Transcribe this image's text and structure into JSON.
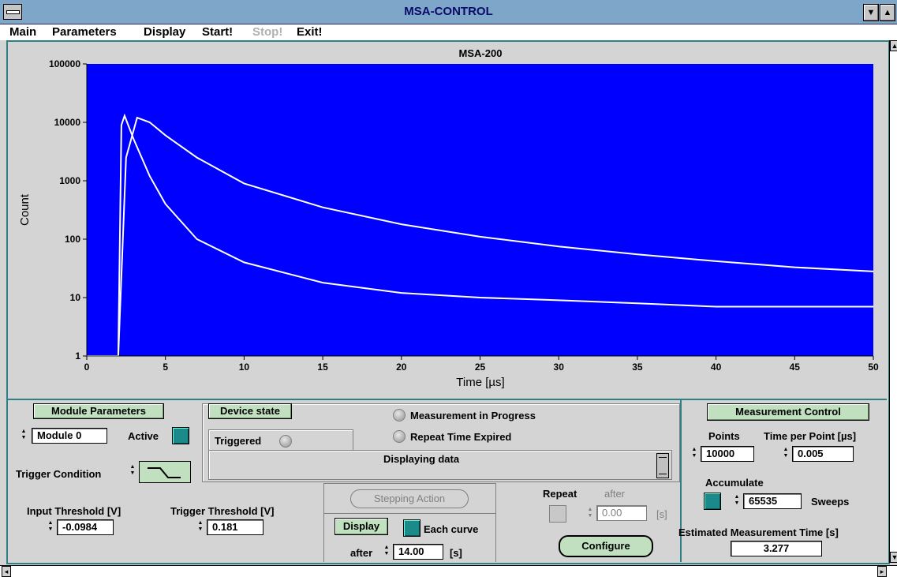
{
  "window": {
    "title": "MSA-CONTROL"
  },
  "menu": {
    "items": [
      "Main",
      "Parameters",
      "Display",
      "Start!",
      "Stop!",
      "Exit!"
    ]
  },
  "chart_data": {
    "type": "line",
    "title": "MSA-200",
    "xlabel": "Time [µs]",
    "ylabel": "Count",
    "xlim": [
      0,
      50
    ],
    "ylim": [
      1,
      100000
    ],
    "yscale": "log",
    "x_ticks": [
      "0",
      "5",
      "10",
      "15",
      "20",
      "25",
      "30",
      "35",
      "40",
      "45",
      "50"
    ],
    "y_ticks": [
      "1",
      "10",
      "100",
      "1000",
      "10000",
      "100000"
    ],
    "background_color": "#0000ff",
    "series": [
      {
        "color": "#ffffff",
        "x": [
          0,
          2.0,
          2.2,
          2.4,
          3.0,
          4,
          5,
          7,
          10,
          15,
          20,
          25,
          30,
          35,
          40,
          45,
          50
        ],
        "values": [
          1,
          1,
          9000,
          13000,
          5000,
          1200,
          400,
          100,
          40,
          18,
          12,
          10,
          9,
          8,
          7,
          7,
          7
        ]
      },
      {
        "color": "#ffffff",
        "x": [
          0,
          2.0,
          2.5,
          3.2,
          4,
          5,
          7,
          10,
          15,
          20,
          25,
          30,
          35,
          40,
          45,
          50
        ],
        "values": [
          1,
          1,
          2500,
          12000,
          10000,
          6000,
          2500,
          900,
          350,
          180,
          110,
          75,
          55,
          42,
          33,
          28
        ]
      }
    ]
  },
  "module": {
    "header": "Module Parameters",
    "module_value": "Module 0",
    "active_label": "Active",
    "trigger_condition_label": "Trigger Condition",
    "input_threshold_label": "Input Threshold [V]",
    "input_threshold_value": "-0.0984",
    "trigger_threshold_label": "Trigger Threshold [V]",
    "trigger_threshold_value": "0.181"
  },
  "device": {
    "header": "Device state",
    "triggered_label": "Triggered",
    "measurement_label": "Measurement  in Progress",
    "repeat_expired_label": "Repeat Time Expired",
    "status_text": "Displaying data"
  },
  "stepping": {
    "button_label": "Stepping Action"
  },
  "display": {
    "button_label": "Display",
    "each_curve_label": "Each curve",
    "after_label": "after",
    "after_value": "14.00",
    "after_unit": "[s]"
  },
  "repeat": {
    "label": "Repeat",
    "after_label": "after",
    "value": "0.00",
    "unit": "[s]",
    "configure_label": "Configure"
  },
  "measurement": {
    "header": "Measurement Control",
    "points_label": "Points",
    "points_value": "10000",
    "tpp_label": "Time per Point [µs]",
    "tpp_value": "0.005",
    "accumulate_label": "Accumulate",
    "sweeps_value": "65535",
    "sweeps_label": "Sweeps",
    "est_label": "Estimated Measurement Time [s]",
    "est_value": "3.277"
  }
}
